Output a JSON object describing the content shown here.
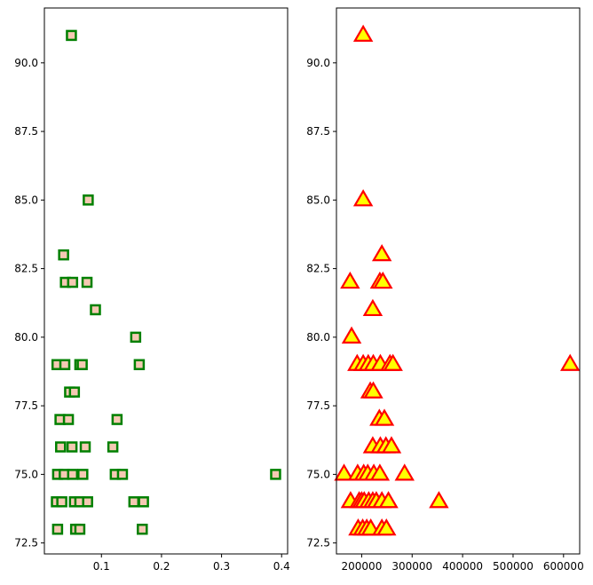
{
  "chart_data": [
    {
      "type": "scatter",
      "xlim": [
        0.005,
        0.41
      ],
      "ylim": [
        72.1,
        92.0
      ],
      "xticks": [
        0.1,
        0.2,
        0.3,
        0.4
      ],
      "xtick_labels": [
        "0.1",
        "0.2",
        "0.3",
        "0.4"
      ],
      "yticks": [
        72.5,
        75.0,
        77.5,
        80.0,
        82.5,
        85.0,
        87.5,
        90.0
      ],
      "ytick_labels": [
        "72.5",
        "75.0",
        "77.5",
        "80.0",
        "82.5",
        "85.0",
        "87.5",
        "90.0"
      ],
      "grid": false,
      "marker": {
        "shape": "square",
        "face_color": "#f5c9b3",
        "edge_color": "#008000"
      },
      "points": [
        {
          "x": 0.05,
          "y": 91
        },
        {
          "x": 0.078,
          "y": 85
        },
        {
          "x": 0.037,
          "y": 83
        },
        {
          "x": 0.04,
          "y": 82
        },
        {
          "x": 0.052,
          "y": 82
        },
        {
          "x": 0.076,
          "y": 82
        },
        {
          "x": 0.09,
          "y": 81
        },
        {
          "x": 0.157,
          "y": 80
        },
        {
          "x": 0.026,
          "y": 79
        },
        {
          "x": 0.039,
          "y": 79
        },
        {
          "x": 0.064,
          "y": 79
        },
        {
          "x": 0.068,
          "y": 79
        },
        {
          "x": 0.163,
          "y": 79
        },
        {
          "x": 0.047,
          "y": 78
        },
        {
          "x": 0.055,
          "y": 78
        },
        {
          "x": 0.031,
          "y": 77
        },
        {
          "x": 0.045,
          "y": 77
        },
        {
          "x": 0.126,
          "y": 77
        },
        {
          "x": 0.032,
          "y": 76
        },
        {
          "x": 0.051,
          "y": 76
        },
        {
          "x": 0.073,
          "y": 76
        },
        {
          "x": 0.119,
          "y": 76
        },
        {
          "x": 0.027,
          "y": 75
        },
        {
          "x": 0.038,
          "y": 75
        },
        {
          "x": 0.052,
          "y": 75
        },
        {
          "x": 0.069,
          "y": 75
        },
        {
          "x": 0.123,
          "y": 75
        },
        {
          "x": 0.135,
          "y": 75
        },
        {
          "x": 0.39,
          "y": 75
        },
        {
          "x": 0.025,
          "y": 74
        },
        {
          "x": 0.034,
          "y": 74
        },
        {
          "x": 0.055,
          "y": 74
        },
        {
          "x": 0.064,
          "y": 74
        },
        {
          "x": 0.077,
          "y": 74
        },
        {
          "x": 0.154,
          "y": 74
        },
        {
          "x": 0.17,
          "y": 74
        },
        {
          "x": 0.027,
          "y": 73
        },
        {
          "x": 0.057,
          "y": 73
        },
        {
          "x": 0.064,
          "y": 73
        },
        {
          "x": 0.168,
          "y": 73
        }
      ]
    },
    {
      "type": "scatter",
      "xlim": [
        150000,
        632000
      ],
      "ylim": [
        72.1,
        92.0
      ],
      "xticks": [
        200000,
        300000,
        400000,
        500000,
        600000
      ],
      "xtick_labels": [
        "200000",
        "300000",
        "400000",
        "500000",
        "600000"
      ],
      "yticks": [
        72.5,
        75.0,
        77.5,
        80.0,
        82.5,
        85.0,
        87.5,
        90.0
      ],
      "ytick_labels": [
        "72.5",
        "75.0",
        "77.5",
        "80.0",
        "82.5",
        "85.0",
        "87.5",
        "90.0"
      ],
      "grid": false,
      "marker": {
        "shape": "triangle",
        "face_color": "#ffff00",
        "edge_color": "#ff0000"
      },
      "points": [
        {
          "x": 203000,
          "y": 91
        },
        {
          "x": 203000,
          "y": 85
        },
        {
          "x": 240000,
          "y": 83
        },
        {
          "x": 177000,
          "y": 82
        },
        {
          "x": 236000,
          "y": 82
        },
        {
          "x": 242000,
          "y": 82
        },
        {
          "x": 222000,
          "y": 81
        },
        {
          "x": 180000,
          "y": 80
        },
        {
          "x": 191000,
          "y": 79
        },
        {
          "x": 203000,
          "y": 79
        },
        {
          "x": 213000,
          "y": 79
        },
        {
          "x": 223000,
          "y": 79
        },
        {
          "x": 237000,
          "y": 79
        },
        {
          "x": 256000,
          "y": 79
        },
        {
          "x": 262000,
          "y": 79
        },
        {
          "x": 613000,
          "y": 79
        },
        {
          "x": 217000,
          "y": 78
        },
        {
          "x": 223000,
          "y": 78
        },
        {
          "x": 235000,
          "y": 77
        },
        {
          "x": 245000,
          "y": 77
        },
        {
          "x": 222000,
          "y": 76
        },
        {
          "x": 237000,
          "y": 76
        },
        {
          "x": 248000,
          "y": 76
        },
        {
          "x": 259000,
          "y": 76
        },
        {
          "x": 165000,
          "y": 75
        },
        {
          "x": 192000,
          "y": 75
        },
        {
          "x": 204000,
          "y": 75
        },
        {
          "x": 212000,
          "y": 75
        },
        {
          "x": 224000,
          "y": 75
        },
        {
          "x": 236000,
          "y": 75
        },
        {
          "x": 285000,
          "y": 75
        },
        {
          "x": 178000,
          "y": 74
        },
        {
          "x": 195000,
          "y": 74
        },
        {
          "x": 200000,
          "y": 74
        },
        {
          "x": 205000,
          "y": 74
        },
        {
          "x": 214000,
          "y": 74
        },
        {
          "x": 222000,
          "y": 74
        },
        {
          "x": 229000,
          "y": 74
        },
        {
          "x": 240000,
          "y": 74
        },
        {
          "x": 253000,
          "y": 74
        },
        {
          "x": 353000,
          "y": 74
        },
        {
          "x": 193000,
          "y": 73
        },
        {
          "x": 202000,
          "y": 73
        },
        {
          "x": 210000,
          "y": 73
        },
        {
          "x": 218000,
          "y": 73
        },
        {
          "x": 240000,
          "y": 73
        },
        {
          "x": 249000,
          "y": 73
        }
      ]
    }
  ]
}
